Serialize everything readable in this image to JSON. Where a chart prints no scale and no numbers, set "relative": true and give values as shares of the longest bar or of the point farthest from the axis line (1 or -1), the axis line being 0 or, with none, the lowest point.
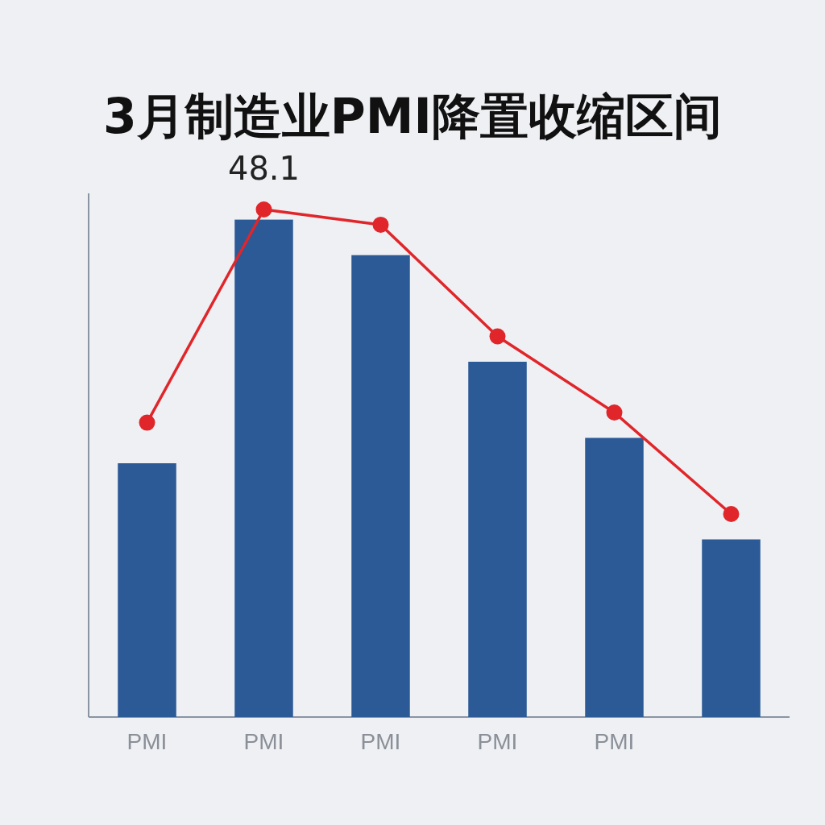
{
  "chart_data": {
    "type": "bar",
    "title": "3月制造业PMI降置收缩区间",
    "relative": true,
    "categories": [
      "PMI",
      "PMI",
      "PMI",
      "PMI",
      "PMI",
      null
    ],
    "annotations": [
      "48.1"
    ],
    "series": [
      {
        "color": "#2b5a96",
        "values": [
          0.5,
          0.98,
          0.91,
          0.7,
          0.55,
          0.35
        ]
      },
      {
        "type": "line",
        "color": "#e0262a",
        "marker": "circle",
        "values": [
          0.58,
          1,
          0.97,
          0.75,
          0.6,
          0.4
        ]
      }
    ]
  }
}
